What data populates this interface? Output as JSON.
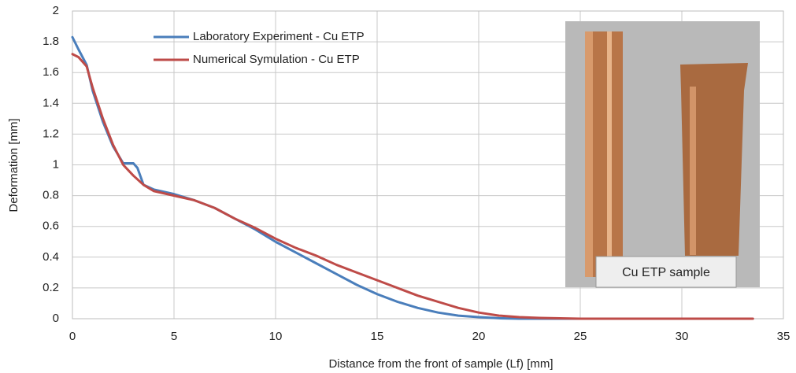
{
  "chart_data": {
    "type": "line",
    "xlabel": "Distance from the front of sample (Lf)  [mm]",
    "ylabel": "Deformation [mm]",
    "xlim": [
      0,
      35
    ],
    "xticks": [
      0,
      5,
      10,
      15,
      20,
      25,
      30,
      35
    ],
    "ylim": [
      0,
      2
    ],
    "yticks": [
      0,
      {
        "value": 0.2,
        "label": "0.2"
      },
      {
        "value": 0.4,
        "label": "0.4"
      },
      {
        "value": 0.6,
        "label": "0.6"
      },
      {
        "value": 0.8,
        "label": "0.8"
      },
      1,
      {
        "value": 1.2,
        "label": "1.2"
      },
      {
        "value": 1.4,
        "label": "1.4"
      },
      {
        "value": 1.6,
        "label": "1.6"
      },
      {
        "value": 1.8,
        "label": "1.8"
      },
      2
    ],
    "grid": true,
    "legend": "upper left",
    "annotation": "Cu ETP sample",
    "series": [
      {
        "name": "Laboratory Experiment - Cu ETP",
        "color": "#4a7ebb",
        "x": [
          0,
          0.3,
          0.7,
          1,
          1.5,
          2,
          2.5,
          3,
          3.2,
          3.5,
          4,
          5,
          6,
          7,
          8,
          9,
          10,
          11,
          12,
          13,
          14,
          15,
          16,
          17,
          18,
          19,
          20,
          21,
          22,
          25
        ],
        "values": [
          1.83,
          1.75,
          1.65,
          1.48,
          1.28,
          1.12,
          1.01,
          1.01,
          0.98,
          0.87,
          0.84,
          0.81,
          0.77,
          0.72,
          0.65,
          0.58,
          0.5,
          0.43,
          0.36,
          0.29,
          0.22,
          0.16,
          0.11,
          0.07,
          0.04,
          0.02,
          0.01,
          0.003,
          0,
          0
        ]
      },
      {
        "name": "Numerical Symulation - Cu ETP",
        "color": "#be4b48",
        "x": [
          0,
          0.3,
          0.7,
          1,
          1.5,
          2,
          2.5,
          3,
          3.5,
          4,
          5,
          6,
          7,
          8,
          9,
          10,
          11,
          12,
          13,
          14,
          15,
          16,
          17,
          18,
          19,
          20,
          21,
          22,
          23,
          25,
          30,
          33.5
        ],
        "values": [
          1.72,
          1.7,
          1.64,
          1.5,
          1.3,
          1.13,
          1.0,
          0.93,
          0.87,
          0.83,
          0.8,
          0.77,
          0.72,
          0.65,
          0.59,
          0.52,
          0.46,
          0.41,
          0.35,
          0.3,
          0.25,
          0.2,
          0.15,
          0.11,
          0.07,
          0.04,
          0.02,
          0.01,
          0.005,
          0,
          0,
          0
        ]
      }
    ]
  }
}
